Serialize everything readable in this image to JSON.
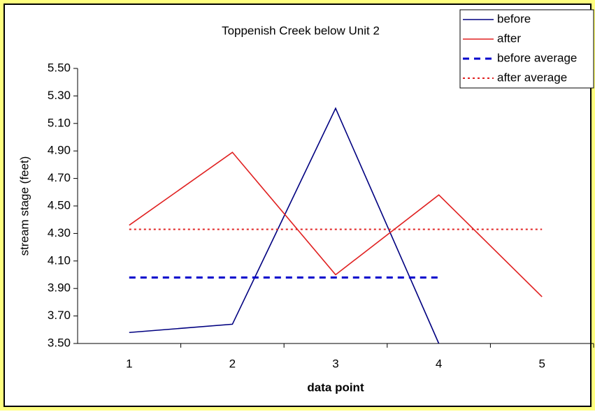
{
  "chart_data": {
    "type": "line",
    "title": "Toppenish Creek below Unit 2",
    "x_label": "data point",
    "y_label": "stream stage (feet)",
    "categories": [
      "1",
      "2",
      "3",
      "4",
      "5"
    ],
    "series": [
      {
        "name": "before",
        "color": "#000080",
        "style": "solid",
        "values": [
          3.58,
          3.64,
          5.21,
          3.5,
          null
        ]
      },
      {
        "name": "after",
        "color": "#e02020",
        "style": "solid",
        "values": [
          4.36,
          4.89,
          4.0,
          4.58,
          3.84
        ]
      },
      {
        "name": "before average",
        "color": "#0000cc",
        "style": "dashed",
        "values": [
          3.98,
          3.98,
          3.98,
          3.98,
          null
        ]
      },
      {
        "name": "after average",
        "color": "#e02020",
        "style": "dotted",
        "values": [
          4.33,
          4.33,
          4.33,
          4.33,
          4.33
        ]
      }
    ],
    "ylim": [
      3.5,
      5.5
    ],
    "yticks": [
      {
        "value": 3.5,
        "label": "3.50"
      },
      {
        "value": 3.7,
        "label": "3.70"
      },
      {
        "value": 3.9,
        "label": "3.90"
      },
      {
        "value": 4.1,
        "label": "4.10"
      },
      {
        "value": 4.3,
        "label": "4.30"
      },
      {
        "value": 4.5,
        "label": "4.50"
      },
      {
        "value": 4.7,
        "label": "4.70"
      },
      {
        "value": 4.9,
        "label": "4.90"
      },
      {
        "value": 5.1,
        "label": "5.10"
      },
      {
        "value": 5.3,
        "label": "5.30"
      },
      {
        "value": 5.5,
        "label": "5.50"
      }
    ],
    "grid": false,
    "legend": "top-right"
  }
}
